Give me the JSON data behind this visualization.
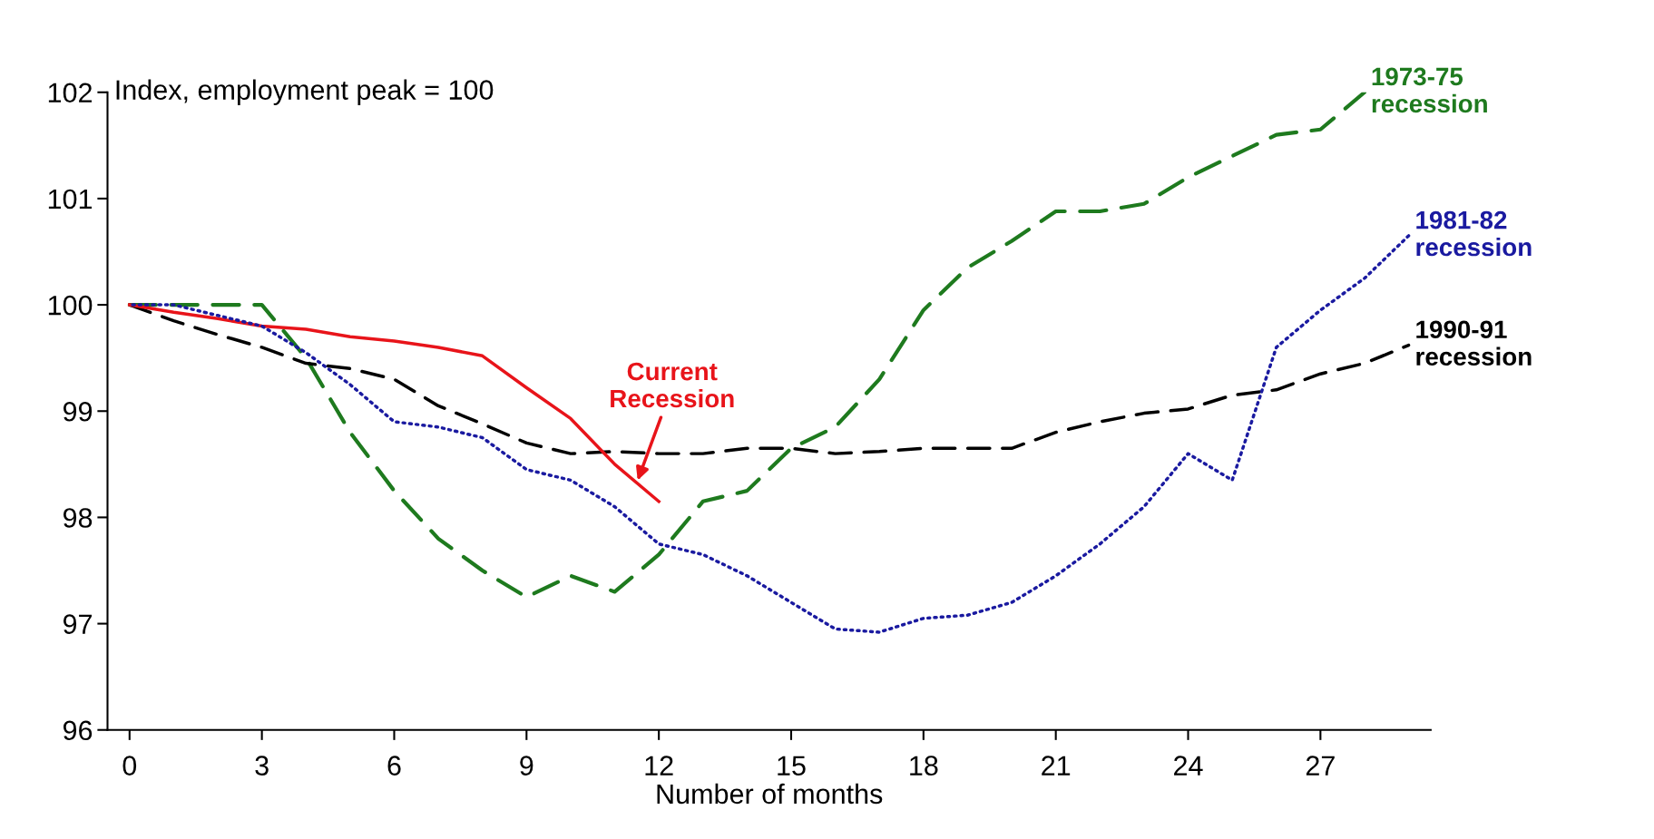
{
  "chart_data": {
    "type": "line",
    "ylabel": "Index, employment peak = 100",
    "xlabel": "Number of months",
    "xlim": [
      -0.5,
      29.5
    ],
    "xticks": [
      0,
      3,
      6,
      9,
      12,
      15,
      18,
      21,
      24,
      27
    ],
    "ylim": [
      96,
      102
    ],
    "yticks": [
      96,
      97,
      98,
      99,
      100,
      101,
      102
    ],
    "grid": false,
    "legend": false,
    "series": [
      {
        "name": "1973-75\nrecession",
        "color": "#1e7a1e",
        "line_style": "dashed",
        "x": [
          0,
          1,
          2,
          3,
          4,
          5,
          6,
          7,
          8,
          9,
          10,
          11,
          12,
          13,
          14,
          15,
          16,
          17,
          18,
          19,
          20,
          21,
          22,
          23,
          24,
          25,
          26,
          27,
          28
        ],
        "values": [
          100,
          100,
          100,
          100,
          99.5,
          98.8,
          98.25,
          97.8,
          97.5,
          97.25,
          97.45,
          97.3,
          97.65,
          98.15,
          98.25,
          98.65,
          98.85,
          99.3,
          99.95,
          100.35,
          100.6,
          100.88,
          100.88,
          100.95,
          101.2,
          101.4,
          101.6,
          101.65,
          102
        ]
      },
      {
        "name": "1981-82\nrecession",
        "color": "#1a1aa0",
        "line_style": "dotted",
        "x": [
          0,
          1,
          2,
          3,
          4,
          5,
          6,
          7,
          8,
          9,
          10,
          11,
          12,
          13,
          14,
          15,
          16,
          17,
          18,
          19,
          20,
          21,
          22,
          23,
          24,
          25,
          26,
          27,
          28,
          29
        ],
        "values": [
          100,
          100,
          99.9,
          99.8,
          99.55,
          99.25,
          98.9,
          98.85,
          98.75,
          98.45,
          98.35,
          98.1,
          97.75,
          97.65,
          97.45,
          97.2,
          96.95,
          96.92,
          97.05,
          97.08,
          97.2,
          97.45,
          97.75,
          98.1,
          98.6,
          98.35,
          99.6,
          99.95,
          100.25,
          100.65
        ]
      },
      {
        "name": "1990-91\nrecession",
        "color": "#000000",
        "line_style": "dashed",
        "x": [
          0,
          1,
          2,
          3,
          4,
          5,
          6,
          7,
          8,
          9,
          10,
          11,
          12,
          13,
          14,
          15,
          16,
          17,
          18,
          19,
          20,
          21,
          22,
          23,
          24,
          25,
          26,
          27,
          28,
          29
        ],
        "values": [
          100,
          99.85,
          99.72,
          99.6,
          99.45,
          99.4,
          99.3,
          99.05,
          98.88,
          98.7,
          98.6,
          98.62,
          98.6,
          98.6,
          98.65,
          98.65,
          98.6,
          98.62,
          98.65,
          98.65,
          98.65,
          98.8,
          98.9,
          98.98,
          99.02,
          99.15,
          99.2,
          99.35,
          99.45,
          99.62
        ]
      },
      {
        "name": "Current\nRecession",
        "color": "#e8141a",
        "line_style": "solid",
        "x": [
          0,
          1,
          2,
          3,
          4,
          5,
          6,
          7,
          8,
          9,
          10,
          11,
          12
        ],
        "values": [
          100,
          99.93,
          99.87,
          99.8,
          99.77,
          99.7,
          99.66,
          99.6,
          99.52,
          99.22,
          98.93,
          98.5,
          98.15
        ]
      }
    ]
  }
}
